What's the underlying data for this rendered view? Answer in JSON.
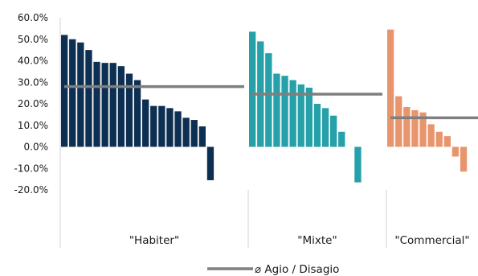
{
  "chart_data": {
    "type": "bar",
    "ylim": [
      -0.2,
      0.6
    ],
    "y_ticks": [
      -0.2,
      -0.1,
      0.0,
      0.1,
      0.2,
      0.3,
      0.4,
      0.5,
      0.6
    ],
    "y_tick_labels": [
      "-20.0%",
      "-10.0%",
      "0.0%",
      "10.0%",
      "20.0%",
      "30.0%",
      "40.0%",
      "50.0%",
      "60.0%"
    ],
    "grid": false,
    "legend": {
      "placement": "bottom-center",
      "entries": [
        {
          "label": "⌀ Agio / Disagio",
          "color": "#7f7f7f",
          "marker": "line"
        }
      ]
    },
    "groups": [
      {
        "name": "\"Habiter\"",
        "color": "#0d2f52",
        "values": [
          0.52,
          0.5,
          0.485,
          0.45,
          0.395,
          0.39,
          0.39,
          0.375,
          0.34,
          0.31,
          0.22,
          0.19,
          0.19,
          0.18,
          0.165,
          0.135,
          0.125,
          0.095,
          -0.155
        ],
        "average": 0.28
      },
      {
        "name": "\"Mixte\"",
        "color": "#26a0a9",
        "values": [
          0.535,
          0.49,
          0.435,
          0.34,
          0.33,
          0.31,
          0.29,
          0.275,
          0.2,
          0.18,
          0.145,
          0.07,
          0.0,
          -0.165
        ],
        "average": 0.245
      },
      {
        "name": "\"Commercial\"",
        "color": "#e8956d",
        "values": [
          0.545,
          0.235,
          0.185,
          0.17,
          0.16,
          0.105,
          0.07,
          0.05,
          -0.045,
          -0.115
        ],
        "average": 0.135
      }
    ]
  }
}
